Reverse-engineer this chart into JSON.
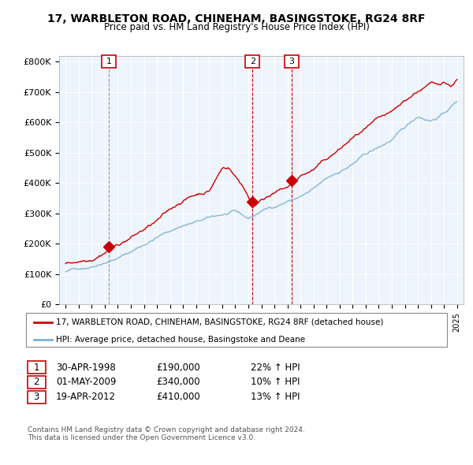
{
  "title1": "17, WARBLETON ROAD, CHINEHAM, BASINGSTOKE, RG24 8RF",
  "title2": "Price paid vs. HM Land Registry's House Price Index (HPI)",
  "ylabel_ticks": [
    "£0",
    "£100K",
    "£200K",
    "£300K",
    "£400K",
    "£500K",
    "£600K",
    "£700K",
    "£800K"
  ],
  "ytick_values": [
    0,
    100000,
    200000,
    300000,
    400000,
    500000,
    600000,
    700000,
    800000
  ],
  "ylim": [
    0,
    820000
  ],
  "sale_year_floats": [
    1998.33,
    2009.33,
    2012.3
  ],
  "sale_prices": [
    190000,
    340000,
    410000
  ],
  "sale_labels": [
    "1",
    "2",
    "3"
  ],
  "sale_info": [
    [
      "1",
      "30-APR-1998",
      "£190,000",
      "22% ↑ HPI"
    ],
    [
      "2",
      "01-MAY-2009",
      "£340,000",
      "10% ↑ HPI"
    ],
    [
      "3",
      "19-APR-2012",
      "£410,000",
      "13% ↑ HPI"
    ]
  ],
  "legend_line1": "17, WARBLETON ROAD, CHINEHAM, BASINGSTOKE, RG24 8RF (detached house)",
  "legend_line2": "HPI: Average price, detached house, Basingstoke and Deane",
  "footer1": "Contains HM Land Registry data © Crown copyright and database right 2024.",
  "footer2": "This data is licensed under the Open Government Licence v3.0.",
  "line_color_red": "#CC0000",
  "line_color_blue": "#7BAFD4",
  "marker_color_red": "#CC0000",
  "background_chart": "#EEF4FB",
  "background_fig": "#FFFFFF",
  "grid_color": "#FFFFFF",
  "vline1_color": "#999999",
  "vline2_color": "#CC0000"
}
